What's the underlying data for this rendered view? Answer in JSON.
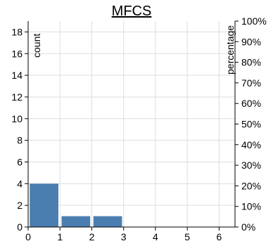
{
  "chart_data": {
    "type": "bar",
    "title": "MFCS",
    "ylabel": "count",
    "y2label": "percentage",
    "bar_color": "#4a7eb0",
    "xlim": [
      0,
      6.5
    ],
    "ylim": [
      0,
      19
    ],
    "y2lim": [
      0,
      100
    ],
    "xticks": [
      0,
      1,
      2,
      3,
      4,
      5,
      6
    ],
    "yticks": [
      0,
      2,
      4,
      6,
      8,
      10,
      12,
      14,
      16,
      18
    ],
    "y2ticks": [
      "0%",
      "10%",
      "20%",
      "30%",
      "40%",
      "50%",
      "60%",
      "70%",
      "80%",
      "90%",
      "100%"
    ],
    "grid": true,
    "bars": [
      {
        "x0": 0.05,
        "x1": 0.95,
        "value": 4
      },
      {
        "x0": 1.05,
        "x1": 1.95,
        "value": 1
      },
      {
        "x0": 2.05,
        "x1": 2.95,
        "value": 1
      }
    ]
  }
}
